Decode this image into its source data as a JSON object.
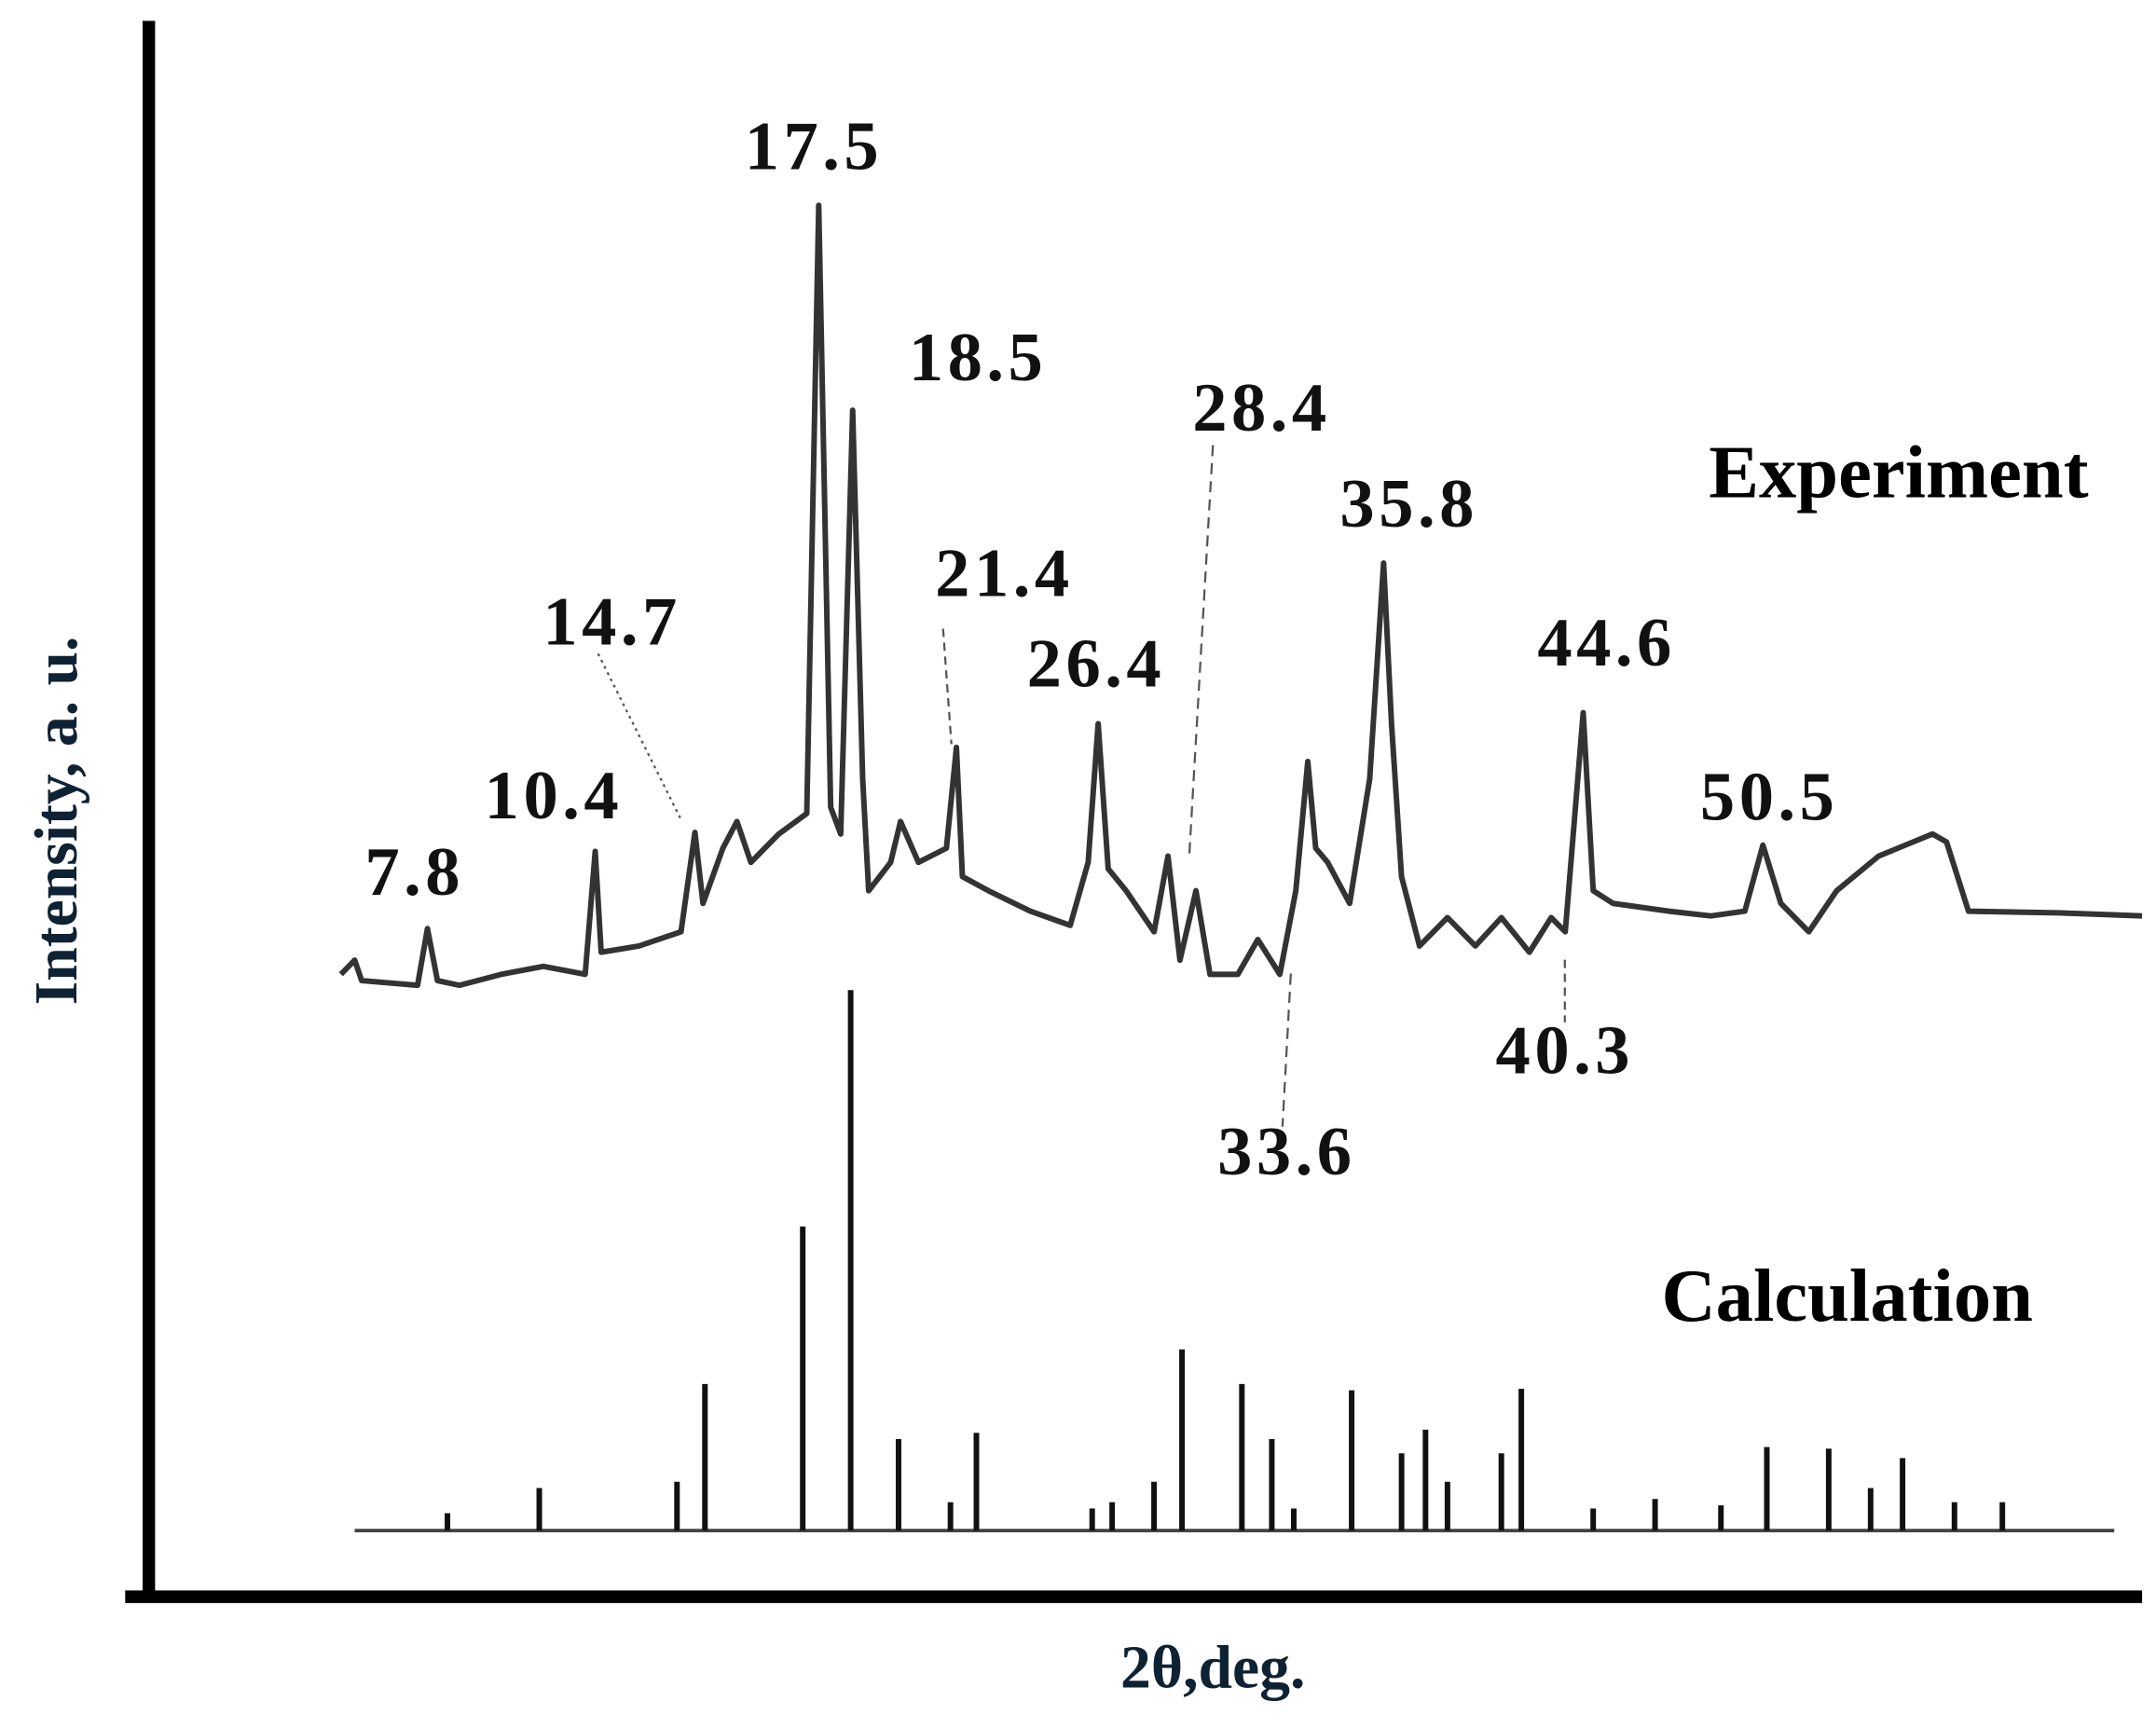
{
  "chart_data": {
    "type": "line",
    "xlabel": "2θ,deg.",
    "ylabel": "Intensity, a. u.",
    "xlim": [
      0,
      100
    ],
    "ylim": [
      0,
      100
    ],
    "series": [
      {
        "name": "Experiment",
        "type": "line",
        "color": "#333333",
        "x": [
          9.76,
          10.45,
          10.8,
          13.6,
          14.1,
          14.6,
          15.7,
          17.8,
          19.9,
          22.0,
          22.5,
          22.8,
          24.7,
          26.8,
          27.5,
          27.9,
          28.9,
          29.6,
          30.3,
          31.7,
          33.1,
          33.7,
          34.3,
          34.8,
          35.4,
          35.9,
          36.2,
          37.3,
          37.8,
          38.7,
          40.1,
          40.6,
          40.9,
          42.2,
          44.3,
          46.3,
          47.2,
          47.7,
          48.2,
          49.1,
          50.5,
          51.2,
          51.8,
          52.6,
          53.3,
          54.7,
          55.7,
          56.8,
          57.6,
          58.2,
          58.6,
          59.2,
          60.3,
          61.3,
          62.0,
          62.4,
          62.9,
          63.8,
          65.2,
          66.6,
          67.9,
          69.3,
          70.4,
          71.1,
          72.0,
          72.5,
          73.5,
          76.3,
          78.4,
          80.1,
          81.0,
          81.9,
          83.3,
          84.7,
          86.8,
          89.5,
          90.2,
          91.3,
          95.8,
          100
        ],
        "values": [
          39.5,
          40.4,
          39.1,
          38.8,
          42.4,
          39.1,
          38.8,
          39.5,
          40.0,
          39.5,
          47.3,
          40.9,
          41.3,
          42.2,
          48.5,
          44.0,
          47.5,
          49.2,
          46.6,
          48.4,
          49.7,
          88.3,
          50.1,
          48.4,
          75.3,
          51.9,
          44.8,
          46.6,
          49.2,
          46.6,
          47.5,
          53.9,
          45.7,
          44.8,
          43.5,
          42.6,
          46.6,
          55.4,
          46.2,
          44.8,
          42.2,
          47.0,
          40.4,
          44.8,
          39.5,
          39.5,
          41.7,
          39.5,
          44.8,
          53.0,
          47.5,
          46.6,
          44.0,
          51.9,
          65.6,
          55.4,
          45.7,
          41.3,
          43.1,
          41.3,
          43.1,
          40.9,
          43.1,
          42.2,
          56.1,
          44.8,
          44.0,
          43.5,
          43.2,
          43.5,
          47.7,
          44.0,
          42.2,
          44.8,
          47.0,
          48.4,
          47.9,
          43.5,
          43.4,
          43.2
        ]
      },
      {
        "name": "Calculation",
        "type": "stem",
        "color": "#111111",
        "baseline": 4.2,
        "x": [
          15.1,
          19.7,
          26.6,
          28.0,
          32.9,
          35.3,
          37.7,
          40.3,
          41.6,
          47.4,
          48.4,
          50.5,
          51.9,
          54.9,
          56.4,
          57.5,
          60.4,
          62.9,
          64.1,
          65.2,
          67.9,
          68.9,
          72.5,
          75.6,
          78.9,
          81.2,
          84.3,
          86.4,
          88.0,
          90.6,
          93.0
        ],
        "values": [
          5.3,
          6.9,
          7.3,
          13.5,
          23.5,
          38.5,
          10.0,
          6.0,
          10.4,
          5.6,
          6.0,
          7.3,
          15.7,
          13.5,
          10.0,
          5.6,
          13.1,
          9.1,
          10.6,
          7.3,
          9.1,
          13.2,
          5.6,
          6.2,
          5.8,
          9.5,
          9.4,
          6.9,
          8.8,
          6.0,
          6.0
        ]
      }
    ],
    "annotations": [
      {
        "text": "7.8"
      },
      {
        "text": "10.4"
      },
      {
        "text": "14.7"
      },
      {
        "text": "17.5"
      },
      {
        "text": "18.5"
      },
      {
        "text": "21.4"
      },
      {
        "text": "26.4"
      },
      {
        "text": "28.4"
      },
      {
        "text": "35.8"
      },
      {
        "text": "44.6"
      },
      {
        "text": "50.5"
      },
      {
        "text": "40.3"
      },
      {
        "text": "33.6"
      }
    ]
  }
}
